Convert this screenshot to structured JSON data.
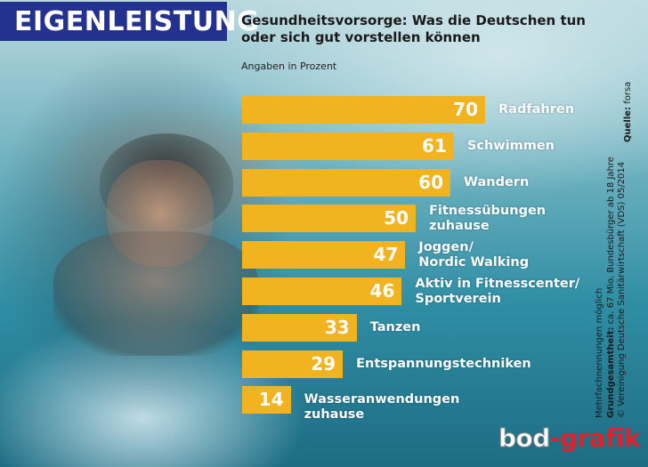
{
  "header": {
    "badge": "EIGENLEISTUNG"
  },
  "title": "Gesundheitsvorsorge: Was die Deutschen tun oder sich gut vorstellen können",
  "unit_note": "Angaben in Prozent",
  "side_notes": {
    "multiple": "Mehrfachnennungen möglich",
    "population_label": "Grundgesamtheit:",
    "population_text": " ca. 67 Mio. Bundesbürger ab 18 Jahre",
    "copyright": "© Vereinigung Deutsche Sanitärwirtschaft (VDS)  05/2014",
    "source_label": "Quelle:",
    "source_text": " forsa"
  },
  "logo": {
    "part1": "bod",
    "part2": "-grafik"
  },
  "colors": {
    "bar": "#f1b320",
    "header": "#24318f",
    "logo_red": "#e0202c"
  },
  "chart_data": {
    "type": "bar",
    "orientation": "horizontal",
    "unit": "Prozent",
    "categories": [
      [
        "Radfahren"
      ],
      [
        "Schwimmen"
      ],
      [
        "Wandern"
      ],
      [
        "Fitnessübungen",
        "zuhause"
      ],
      [
        "Joggen/",
        "Nordic Walking"
      ],
      [
        "Aktiv in Fitnesscenter/",
        "Sportverein"
      ],
      [
        "Tanzen"
      ],
      [
        "Entspannungstechniken"
      ],
      [
        "Wasseranwendungen zuhause"
      ]
    ],
    "values": [
      70,
      61,
      60,
      50,
      47,
      46,
      33,
      29,
      14
    ],
    "xlim": [
      0,
      100
    ],
    "grid": false,
    "legend": "none"
  }
}
